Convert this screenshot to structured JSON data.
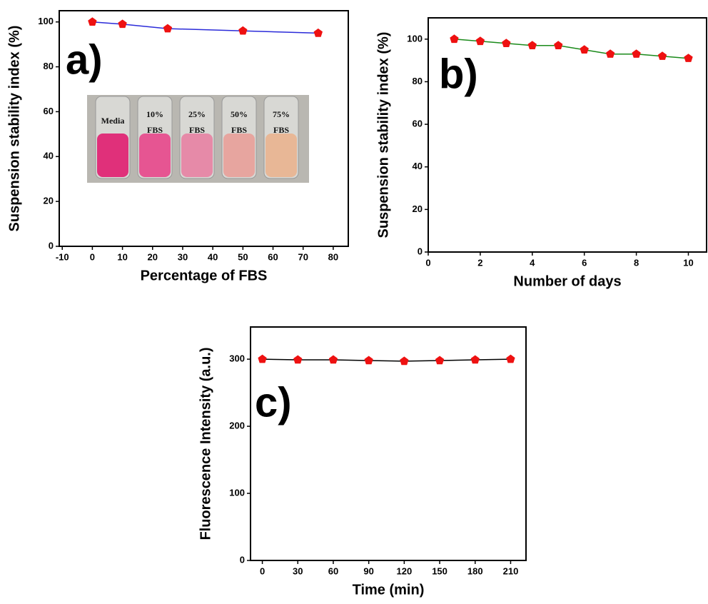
{
  "chart_data": [
    {
      "type": "line",
      "label": "a)",
      "x_label": "Percentage of FBS",
      "y_label": "Suspension stability index (%)",
      "x": [
        0,
        10,
        25,
        50,
        75
      ],
      "series": [
        {
          "color": "#2b2bd9",
          "marker_color": "#ee1111",
          "values": [
            100,
            99,
            97,
            96,
            95
          ]
        }
      ],
      "xlim": [
        -11,
        85
      ],
      "xticks": [
        -10,
        0,
        10,
        20,
        30,
        40,
        50,
        60,
        70,
        80
      ],
      "ylim": [
        0,
        105
      ],
      "yticks": [
        0,
        20,
        40,
        60,
        80,
        100
      ],
      "inset_labels": [
        [
          "Media"
        ],
        [
          "10%",
          "FBS"
        ],
        [
          "25%",
          "FBS"
        ],
        [
          "50%",
          "FBS"
        ],
        [
          "75%",
          "FBS"
        ]
      ]
    },
    {
      "type": "line",
      "label": "b)",
      "x_label": "Number of days",
      "y_label": "Suspension stability index (%)",
      "x": [
        1,
        2,
        3,
        4,
        5,
        6,
        7,
        8,
        9,
        10
      ],
      "series": [
        {
          "color": "#1a8a1a",
          "marker_color": "#ee1111",
          "values": [
            100,
            99,
            98,
            97,
            97,
            95,
            93,
            93,
            92,
            91
          ]
        }
      ],
      "xlim": [
        0,
        10.7
      ],
      "xticks": [
        0,
        2,
        4,
        6,
        8,
        10
      ],
      "ylim": [
        0,
        110
      ],
      "yticks": [
        0,
        20,
        40,
        60,
        80,
        100
      ]
    },
    {
      "type": "line",
      "label": "c)",
      "x_label": "Time (min)",
      "y_label": "Fluorescence Intensity (a.u.)",
      "x": [
        0,
        30,
        60,
        90,
        120,
        150,
        180,
        210
      ],
      "series": [
        {
          "color": "#000000",
          "marker_color": "#ee1111",
          "values": [
            300,
            299,
            299,
            298,
            297,
            298,
            299,
            300
          ]
        }
      ],
      "xlim": [
        -10,
        223
      ],
      "xticks": [
        0,
        30,
        60,
        90,
        120,
        150,
        180,
        210
      ],
      "ylim": [
        0,
        348
      ],
      "yticks": [
        0,
        100,
        200,
        300
      ]
    }
  ]
}
